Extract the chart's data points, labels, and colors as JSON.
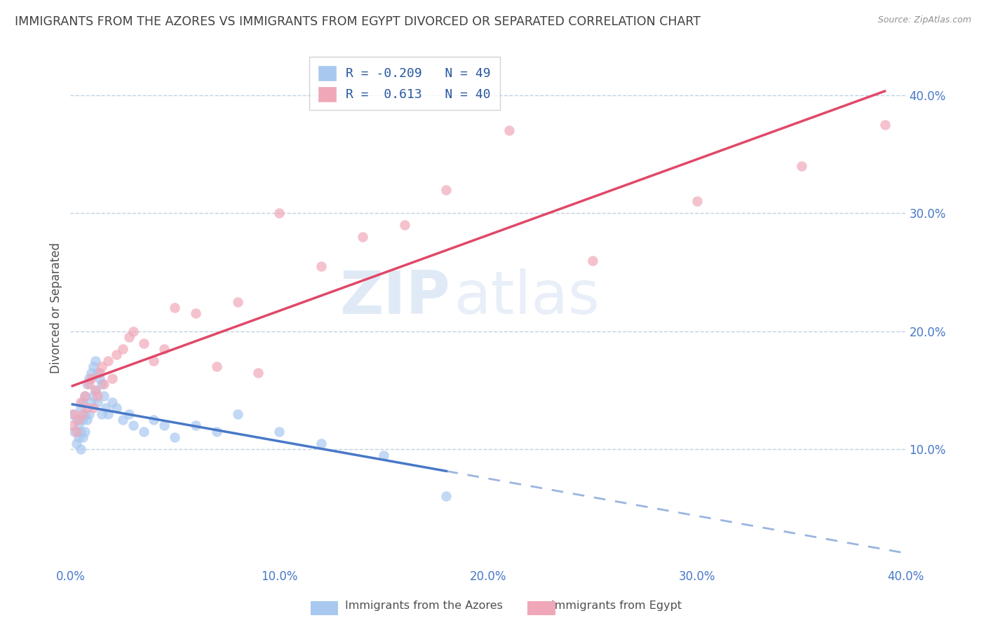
{
  "title": "IMMIGRANTS FROM THE AZORES VS IMMIGRANTS FROM EGYPT DIVORCED OR SEPARATED CORRELATION CHART",
  "source": "Source: ZipAtlas.com",
  "ylabel": "Divorced or Separated",
  "legend_azores": "Immigrants from the Azores",
  "legend_egypt": "Immigrants from Egypt",
  "r_azores": -0.209,
  "n_azores": 49,
  "r_egypt": 0.613,
  "n_egypt": 40,
  "color_azores": "#a8c8f0",
  "color_egypt": "#f0a8b8",
  "line_azores": "#4878c8",
  "line_egypt": "#e04868",
  "watermark_zip": "ZIP",
  "watermark_atlas": "atlas",
  "xmin": 0.0,
  "xmax": 0.4,
  "ymin": 0.0,
  "ymax": 0.44,
  "yticks": [
    0.1,
    0.2,
    0.3,
    0.4
  ],
  "xticks": [
    0.0,
    0.1,
    0.2,
    0.3,
    0.4
  ],
  "azores_x": [
    0.001,
    0.002,
    0.003,
    0.003,
    0.004,
    0.004,
    0.005,
    0.005,
    0.005,
    0.006,
    0.006,
    0.006,
    0.007,
    0.007,
    0.007,
    0.008,
    0.008,
    0.009,
    0.009,
    0.01,
    0.01,
    0.011,
    0.011,
    0.012,
    0.012,
    0.013,
    0.013,
    0.014,
    0.015,
    0.015,
    0.016,
    0.017,
    0.018,
    0.02,
    0.022,
    0.025,
    0.028,
    0.03,
    0.035,
    0.04,
    0.045,
    0.05,
    0.06,
    0.07,
    0.08,
    0.1,
    0.12,
    0.15,
    0.18
  ],
  "azores_y": [
    0.13,
    0.115,
    0.125,
    0.105,
    0.12,
    0.11,
    0.135,
    0.115,
    0.1,
    0.14,
    0.125,
    0.11,
    0.145,
    0.13,
    0.115,
    0.155,
    0.125,
    0.16,
    0.13,
    0.165,
    0.14,
    0.17,
    0.145,
    0.175,
    0.15,
    0.165,
    0.14,
    0.16,
    0.155,
    0.13,
    0.145,
    0.135,
    0.13,
    0.14,
    0.135,
    0.125,
    0.13,
    0.12,
    0.115,
    0.125,
    0.12,
    0.11,
    0.12,
    0.115,
    0.13,
    0.115,
    0.105,
    0.095,
    0.06
  ],
  "egypt_x": [
    0.001,
    0.002,
    0.003,
    0.004,
    0.005,
    0.006,
    0.007,
    0.008,
    0.009,
    0.01,
    0.011,
    0.012,
    0.013,
    0.014,
    0.015,
    0.016,
    0.018,
    0.02,
    0.022,
    0.025,
    0.028,
    0.03,
    0.035,
    0.04,
    0.045,
    0.05,
    0.06,
    0.07,
    0.08,
    0.09,
    0.1,
    0.12,
    0.14,
    0.16,
    0.18,
    0.21,
    0.25,
    0.3,
    0.35,
    0.39
  ],
  "egypt_y": [
    0.12,
    0.13,
    0.115,
    0.125,
    0.14,
    0.13,
    0.145,
    0.135,
    0.155,
    0.16,
    0.135,
    0.15,
    0.145,
    0.165,
    0.17,
    0.155,
    0.175,
    0.16,
    0.18,
    0.185,
    0.195,
    0.2,
    0.19,
    0.175,
    0.185,
    0.22,
    0.215,
    0.17,
    0.225,
    0.165,
    0.3,
    0.255,
    0.28,
    0.29,
    0.32,
    0.37,
    0.26,
    0.31,
    0.34,
    0.375
  ],
  "background_color": "#ffffff",
  "grid_color": "#b8cce0",
  "title_color": "#404040",
  "axis_color": "#505050",
  "tick_color": "#4878c8",
  "title_fontsize": 12.5,
  "axis_label_fontsize": 12,
  "tick_fontsize": 12
}
